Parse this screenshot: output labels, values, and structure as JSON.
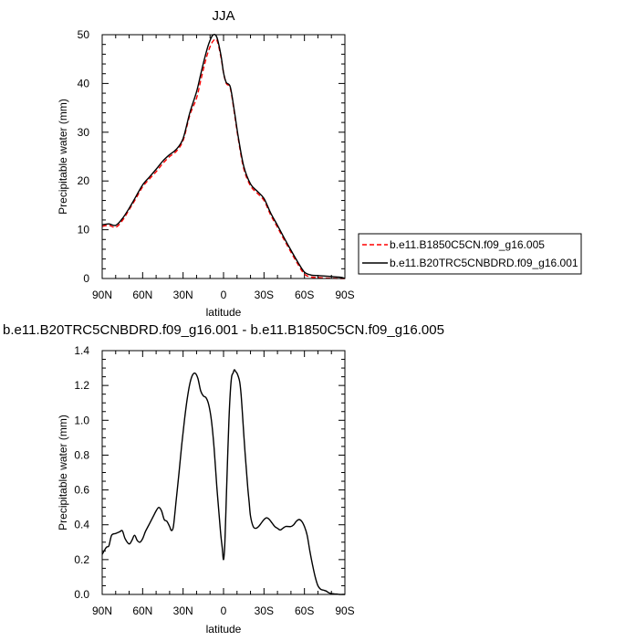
{
  "chart_data": [
    {
      "type": "line",
      "title": "JJA",
      "xlabel": "latitude",
      "ylabel": "Precipitable water (mm)",
      "xlim": [
        -90,
        90
      ],
      "ylim": [
        0,
        50
      ],
      "x_tick_labels": [
        "90N",
        "60N",
        "30N",
        "0",
        "30S",
        "60S",
        "90S"
      ],
      "y_tick_labels": [
        "0",
        "10",
        "20",
        "30",
        "40",
        "50"
      ],
      "legend_placement": "right",
      "series": [
        {
          "name": "b.e11.B1850C5CN.f09_g16.005",
          "color": "#ff0000",
          "dash": "dashed",
          "x": [
            -90,
            -85,
            -80,
            -75,
            -70,
            -65,
            -60,
            -55,
            -50,
            -45,
            -40,
            -35,
            -30,
            -25,
            -20,
            -17,
            -14,
            -11,
            -8,
            -5,
            -2,
            0,
            2,
            5,
            8,
            11,
            15,
            20,
            25,
            30,
            35,
            40,
            45,
            50,
            55,
            60,
            65,
            70,
            75,
            80,
            85,
            88,
            90
          ],
          "y": [
            10.7,
            10.9,
            10.5,
            11.9,
            14.1,
            16.4,
            18.8,
            20.4,
            21.9,
            23.6,
            25.0,
            26.1,
            28.3,
            33.5,
            37.0,
            40.5,
            44.0,
            46.8,
            48.6,
            48.9,
            45.5,
            42.2,
            40.0,
            39.0,
            34.0,
            28.5,
            22.5,
            19.0,
            17.5,
            16.0,
            13.0,
            10.5,
            7.9,
            5.4,
            3.0,
            0.9,
            0.3,
            0.2,
            0.1,
            0.05,
            0.0,
            0.0,
            0.0
          ]
        },
        {
          "name": "b.e11.B20TRC5CNBDRD.f09_g16.001",
          "color": "#000000",
          "dash": "solid",
          "x": [
            -90,
            -85,
            -80,
            -75,
            -70,
            -65,
            -60,
            -55,
            -50,
            -45,
            -40,
            -35,
            -30,
            -25,
            -20,
            -17,
            -14,
            -11,
            -8,
            -5,
            -2,
            0,
            2,
            5,
            8,
            11,
            15,
            20,
            25,
            30,
            35,
            40,
            45,
            50,
            55,
            60,
            65,
            70,
            75,
            80,
            85,
            88,
            90
          ],
          "y": [
            11.0,
            11.2,
            10.9,
            12.3,
            14.4,
            16.8,
            19.2,
            20.8,
            22.4,
            24.1,
            25.4,
            26.5,
            28.7,
            34.0,
            38.3,
            41.8,
            45.2,
            48.1,
            49.9,
            49.5,
            45.9,
            42.2,
            40.2,
            39.3,
            34.4,
            28.9,
            23.0,
            19.4,
            17.9,
            16.4,
            13.4,
            10.9,
            8.3,
            5.8,
            3.4,
            1.3,
            0.7,
            0.6,
            0.5,
            0.4,
            0.3,
            0.2,
            0.0
          ]
        }
      ]
    },
    {
      "type": "line",
      "title": "b.e11.B20TRC5CNBDRD.f09_g16.001 - b.e11.B1850C5CN.f09_g16.005",
      "xlabel": "latitude",
      "ylabel": "Precipitable water (mm)",
      "xlim": [
        -90,
        90
      ],
      "ylim": [
        0,
        1.4
      ],
      "x_tick_labels": [
        "90N",
        "60N",
        "30N",
        "0",
        "30S",
        "60S",
        "90S"
      ],
      "y_tick_labels": [
        "0.0",
        "0.2",
        "0.4",
        "0.6",
        "0.8",
        "1.0",
        "1.2",
        "1.4"
      ],
      "series": [
        {
          "color": "#000000",
          "dash": "solid",
          "x": [
            -90,
            -87,
            -85,
            -83,
            -80,
            -77,
            -75,
            -73,
            -70,
            -68,
            -66,
            -64,
            -62,
            -60,
            -58,
            -56,
            -54,
            -52,
            -50,
            -48,
            -46,
            -44,
            -42,
            -40,
            -39,
            -38,
            -37,
            -35,
            -33,
            -31,
            -29,
            -27,
            -25,
            -23,
            -21,
            -19,
            -17,
            -15,
            -13,
            -11,
            -9,
            -7,
            -5,
            -3,
            -2,
            -1,
            0,
            1,
            2,
            3,
            4,
            5,
            6,
            7,
            8,
            9,
            10,
            11,
            12,
            13,
            14,
            15,
            16,
            17,
            18,
            19,
            20,
            22,
            24,
            26,
            28,
            30,
            32,
            34,
            36,
            38,
            40,
            42,
            44,
            46,
            48,
            50,
            52,
            54,
            56,
            58,
            60,
            62,
            64,
            66,
            68,
            70,
            72,
            74,
            76,
            78,
            80,
            82,
            84,
            86,
            88,
            90
          ],
          "y": [
            0.23,
            0.27,
            0.28,
            0.34,
            0.35,
            0.36,
            0.365,
            0.32,
            0.29,
            0.31,
            0.34,
            0.31,
            0.3,
            0.32,
            0.36,
            0.39,
            0.42,
            0.45,
            0.48,
            0.5,
            0.48,
            0.43,
            0.42,
            0.39,
            0.37,
            0.37,
            0.4,
            0.55,
            0.7,
            0.86,
            1.0,
            1.12,
            1.21,
            1.26,
            1.27,
            1.24,
            1.17,
            1.14,
            1.13,
            1.09,
            1.0,
            0.84,
            0.62,
            0.43,
            0.34,
            0.27,
            0.2,
            0.3,
            0.54,
            0.78,
            1.0,
            1.16,
            1.25,
            1.27,
            1.29,
            1.28,
            1.27,
            1.25,
            1.22,
            1.15,
            1.04,
            0.92,
            0.81,
            0.71,
            0.61,
            0.53,
            0.45,
            0.39,
            0.38,
            0.39,
            0.41,
            0.43,
            0.44,
            0.43,
            0.41,
            0.39,
            0.38,
            0.37,
            0.38,
            0.39,
            0.39,
            0.39,
            0.4,
            0.42,
            0.43,
            0.42,
            0.39,
            0.34,
            0.25,
            0.17,
            0.1,
            0.05,
            0.03,
            0.025,
            0.02,
            0.01,
            0.005,
            0.003,
            0.002,
            0.0,
            0.0,
            0.0
          ]
        }
      ]
    }
  ]
}
